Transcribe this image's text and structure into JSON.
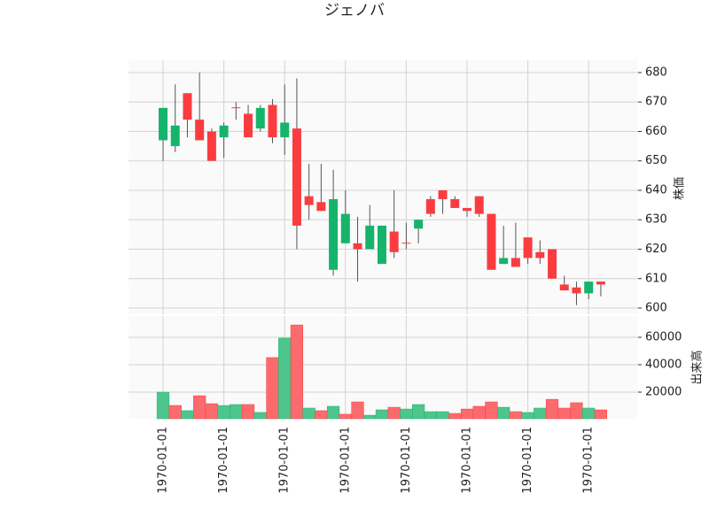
{
  "chart_data": {
    "type": "candlestick",
    "title": "ジェノバ",
    "ylabel": "株価",
    "y2label": "出来高",
    "categories": [
      "1970-01-01",
      null,
      null,
      null,
      null,
      "1970-01-01",
      null,
      null,
      null,
      null,
      "1970-01-01",
      null,
      null,
      null,
      null,
      "1970-01-01",
      null,
      null,
      null,
      null,
      "1970-01-01",
      null,
      null,
      null,
      null,
      "1970-01-01",
      null,
      null,
      null,
      null,
      "1970-01-01",
      null,
      null,
      null,
      null,
      "1970-01-01",
      null
    ],
    "open": [
      657,
      655,
      673,
      664,
      660,
      658,
      668.2,
      666,
      661,
      669,
      658,
      661,
      638,
      636,
      613,
      622,
      622,
      620,
      615,
      626,
      622.2,
      627,
      637,
      640,
      637,
      634,
      638,
      632,
      615,
      617,
      624,
      619,
      620,
      608,
      607,
      605,
      609
    ],
    "high": [
      668,
      676,
      673,
      680,
      661,
      663,
      670,
      669,
      669,
      671,
      676,
      678,
      649,
      649,
      647,
      640,
      631,
      635,
      628,
      640,
      629,
      630,
      638,
      640,
      638,
      634,
      638,
      632,
      628,
      629,
      624,
      623,
      620,
      611,
      609,
      609,
      609
    ],
    "low": [
      650,
      653,
      658,
      657,
      650,
      651,
      664,
      658,
      660,
      656,
      652,
      620,
      630,
      633,
      611,
      622,
      609,
      620,
      615,
      617,
      620,
      622,
      631,
      632,
      634,
      631,
      631,
      613,
      615,
      614,
      615,
      615,
      610,
      606,
      601,
      603,
      604
    ],
    "close": [
      668,
      662,
      664,
      657,
      650,
      662,
      668,
      658,
      668,
      658,
      663,
      628,
      635,
      633,
      637,
      632,
      620,
      628,
      628,
      619,
      622,
      630,
      632,
      637,
      634,
      633,
      632,
      613,
      617,
      614,
      617,
      617,
      610,
      606,
      605,
      609,
      608
    ],
    "volume": [
      20000,
      10300,
      6500,
      17400,
      11600,
      10300,
      11000,
      11000,
      5200,
      45200,
      59400,
      69000,
      8400,
      6500,
      9700,
      3900,
      12900,
      3200,
      7100,
      9000,
      7700,
      11000,
      5800,
      5800,
      4500,
      7700,
      9700,
      12900,
      9000,
      5800,
      5200,
      8400,
      14800,
      8400,
      12300,
      8400,
      7100
    ],
    "up_color": "#16b46a",
    "down_color": "#fa3c40",
    "volume_up_color": "#4ec58d",
    "volume_down_color": "#fb6b6e",
    "ylim": [
      597.9,
      684.2
    ],
    "yticks": [
      600,
      610,
      620,
      630,
      640,
      650,
      660,
      670,
      680
    ],
    "y2lim": [
      650,
      75500
    ],
    "y2ticks": [
      20000,
      40000,
      60000
    ],
    "grid": true
  }
}
